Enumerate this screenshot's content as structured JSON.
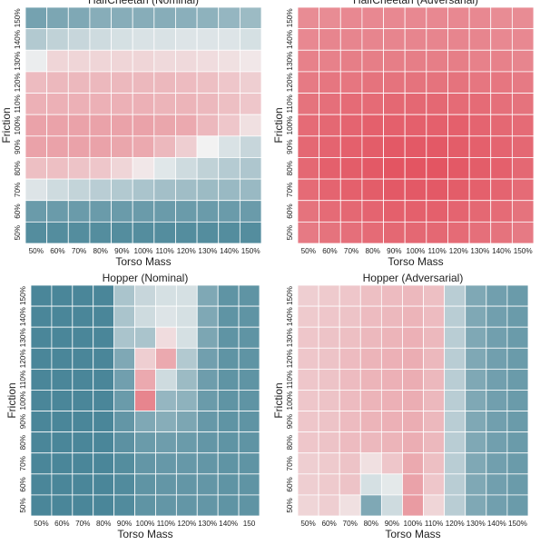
{
  "colors": {
    "low": "#3f7f93",
    "mid": "#f2f2f2",
    "high": "#e03c4b"
  },
  "chart_data": [
    {
      "type": "heatmap",
      "title": "HalfCheetah (Nominal)",
      "xlabel": "Torso Mass",
      "ylabel": "Friction",
      "x_ticks": [
        "50%",
        "60%",
        "70%",
        "80%",
        "90%",
        "100%",
        "110%",
        "120%",
        "130%",
        "140%",
        "150%"
      ],
      "y_ticks": [
        "150%",
        "140%",
        "130%",
        "120%",
        "110%",
        "100%",
        "90%",
        "80%",
        "70%",
        "60%",
        "50%"
      ],
      "values": [
        [
          0.15,
          0.17,
          0.18,
          0.2,
          0.2,
          0.2,
          0.2,
          0.21,
          0.22,
          0.24,
          0.26
        ],
        [
          0.32,
          0.36,
          0.38,
          0.4,
          0.42,
          0.43,
          0.43,
          0.44,
          0.44,
          0.44,
          0.42
        ],
        [
          0.48,
          0.58,
          0.58,
          0.58,
          0.58,
          0.58,
          0.57,
          0.57,
          0.56,
          0.55,
          0.53
        ],
        [
          0.65,
          0.66,
          0.66,
          0.66,
          0.66,
          0.66,
          0.66,
          0.65,
          0.64,
          0.62,
          0.6
        ],
        [
          0.68,
          0.68,
          0.68,
          0.68,
          0.68,
          0.68,
          0.67,
          0.67,
          0.66,
          0.64,
          0.62
        ],
        [
          0.72,
          0.72,
          0.72,
          0.72,
          0.72,
          0.72,
          0.71,
          0.7,
          0.66,
          0.62,
          0.55
        ],
        [
          0.72,
          0.72,
          0.72,
          0.72,
          0.71,
          0.7,
          0.66,
          0.6,
          0.5,
          0.43,
          0.38
        ],
        [
          0.64,
          0.64,
          0.63,
          0.62,
          0.58,
          0.53,
          0.45,
          0.4,
          0.36,
          0.33,
          0.31
        ],
        [
          0.44,
          0.4,
          0.37,
          0.34,
          0.32,
          0.3,
          0.28,
          0.27,
          0.26,
          0.25,
          0.25
        ],
        [
          0.12,
          0.12,
          0.12,
          0.12,
          0.12,
          0.12,
          0.12,
          0.12,
          0.12,
          0.12,
          0.12
        ],
        [
          0.06,
          0.06,
          0.06,
          0.06,
          0.06,
          0.06,
          0.06,
          0.06,
          0.06,
          0.06,
          0.06
        ]
      ]
    },
    {
      "type": "heatmap",
      "title": "HalfCheetah (Adversarial)",
      "xlabel": "Torso Mass",
      "ylabel": "Friction",
      "x_ticks": [
        "50%",
        "60%",
        "70%",
        "80%",
        "90%",
        "100%",
        "110%",
        "120%",
        "130%",
        "140%",
        "150%"
      ],
      "y_ticks": [
        "150%",
        "140%",
        "130%",
        "120%",
        "110%",
        "100%",
        "90%",
        "80%",
        "70%",
        "60%",
        "50%"
      ],
      "values": [
        [
          0.78,
          0.78,
          0.79,
          0.79,
          0.79,
          0.79,
          0.79,
          0.79,
          0.79,
          0.78,
          0.78
        ],
        [
          0.79,
          0.8,
          0.8,
          0.8,
          0.8,
          0.8,
          0.8,
          0.8,
          0.8,
          0.79,
          0.79
        ],
        [
          0.81,
          0.81,
          0.82,
          0.82,
          0.82,
          0.82,
          0.82,
          0.82,
          0.81,
          0.81,
          0.8
        ],
        [
          0.83,
          0.84,
          0.84,
          0.85,
          0.85,
          0.85,
          0.85,
          0.85,
          0.84,
          0.84,
          0.83
        ],
        [
          0.85,
          0.86,
          0.87,
          0.87,
          0.88,
          0.88,
          0.88,
          0.87,
          0.87,
          0.86,
          0.85
        ],
        [
          0.87,
          0.88,
          0.89,
          0.9,
          0.9,
          0.9,
          0.9,
          0.9,
          0.89,
          0.88,
          0.87
        ],
        [
          0.88,
          0.89,
          0.9,
          0.91,
          0.92,
          0.92,
          0.92,
          0.91,
          0.9,
          0.89,
          0.88
        ],
        [
          0.88,
          0.9,
          0.91,
          0.92,
          0.93,
          0.93,
          0.93,
          0.92,
          0.91,
          0.9,
          0.88
        ],
        [
          0.87,
          0.89,
          0.9,
          0.91,
          0.92,
          0.92,
          0.92,
          0.91,
          0.9,
          0.89,
          0.87
        ],
        [
          0.85,
          0.87,
          0.88,
          0.89,
          0.9,
          0.9,
          0.9,
          0.89,
          0.88,
          0.87,
          0.85
        ],
        [
          0.83,
          0.85,
          0.86,
          0.87,
          0.88,
          0.88,
          0.88,
          0.87,
          0.86,
          0.85,
          0.83
        ]
      ]
    },
    {
      "type": "heatmap",
      "title": "Hopper (Nominal)",
      "xlabel": "Torso Mass",
      "ylabel": "Friction",
      "x_ticks": [
        "50%",
        "60%",
        "70%",
        "80%",
        "90%",
        "100%",
        "110%",
        "120%",
        "130%",
        "140%",
        "150"
      ],
      "y_ticks": [
        "150%",
        "140%",
        "130%",
        "120%",
        "110%",
        "100%",
        "90%",
        "80%",
        "70%",
        "60%",
        "50%"
      ],
      "values": [
        [
          0.03,
          0.03,
          0.03,
          0.03,
          0.3,
          0.38,
          0.42,
          0.42,
          0.18,
          0.09,
          0.09
        ],
        [
          0.03,
          0.03,
          0.03,
          0.03,
          0.3,
          0.4,
          0.44,
          0.42,
          0.18,
          0.09,
          0.09
        ],
        [
          0.03,
          0.03,
          0.03,
          0.03,
          0.3,
          0.3,
          0.56,
          0.42,
          0.17,
          0.09,
          0.09
        ],
        [
          0.03,
          0.03,
          0.03,
          0.03,
          0.18,
          0.6,
          0.7,
          0.32,
          0.14,
          0.09,
          0.09
        ],
        [
          0.03,
          0.03,
          0.03,
          0.03,
          0.14,
          0.7,
          0.4,
          0.26,
          0.13,
          0.09,
          0.09
        ],
        [
          0.03,
          0.03,
          0.03,
          0.03,
          0.12,
          0.8,
          0.24,
          0.22,
          0.12,
          0.09,
          0.09
        ],
        [
          0.03,
          0.03,
          0.03,
          0.03,
          0.1,
          0.18,
          0.2,
          0.17,
          0.11,
          0.09,
          0.09
        ],
        [
          0.03,
          0.03,
          0.03,
          0.03,
          0.08,
          0.12,
          0.13,
          0.12,
          0.1,
          0.09,
          0.09
        ],
        [
          0.03,
          0.03,
          0.03,
          0.03,
          0.06,
          0.1,
          0.11,
          0.11,
          0.1,
          0.09,
          0.09
        ],
        [
          0.03,
          0.03,
          0.03,
          0.03,
          0.05,
          0.09,
          0.1,
          0.1,
          0.1,
          0.09,
          0.09
        ],
        [
          0.03,
          0.03,
          0.03,
          0.03,
          0.05,
          0.09,
          0.1,
          0.1,
          0.1,
          0.09,
          0.09
        ]
      ]
    },
    {
      "type": "heatmap",
      "title": "Hopper (Adversarial)",
      "xlabel": "Torso Mass",
      "ylabel": "Friction",
      "x_ticks": [
        "50%",
        "60%",
        "70%",
        "80%",
        "90%",
        "100%",
        "110%",
        "120%",
        "130%",
        "140%",
        "150%"
      ],
      "y_ticks": [
        "150%",
        "140%",
        "130%",
        "120%",
        "110%",
        "100%",
        "90%",
        "80%",
        "70%",
        "60%",
        "50%"
      ],
      "values": [
        [
          0.6,
          0.61,
          0.62,
          0.64,
          0.65,
          0.66,
          0.64,
          0.34,
          0.18,
          0.14,
          0.12
        ],
        [
          0.61,
          0.62,
          0.63,
          0.65,
          0.66,
          0.67,
          0.65,
          0.34,
          0.18,
          0.14,
          0.12
        ],
        [
          0.62,
          0.63,
          0.64,
          0.66,
          0.67,
          0.68,
          0.66,
          0.34,
          0.18,
          0.14,
          0.12
        ],
        [
          0.62,
          0.63,
          0.65,
          0.67,
          0.68,
          0.69,
          0.66,
          0.34,
          0.18,
          0.14,
          0.12
        ],
        [
          0.62,
          0.63,
          0.65,
          0.67,
          0.68,
          0.69,
          0.66,
          0.34,
          0.18,
          0.14,
          0.12
        ],
        [
          0.62,
          0.63,
          0.65,
          0.67,
          0.68,
          0.69,
          0.66,
          0.34,
          0.18,
          0.14,
          0.12
        ],
        [
          0.62,
          0.63,
          0.65,
          0.67,
          0.68,
          0.69,
          0.66,
          0.34,
          0.18,
          0.14,
          0.12
        ],
        [
          0.62,
          0.63,
          0.65,
          0.66,
          0.67,
          0.69,
          0.66,
          0.34,
          0.18,
          0.14,
          0.12
        ],
        [
          0.6,
          0.61,
          0.63,
          0.55,
          0.62,
          0.7,
          0.64,
          0.34,
          0.18,
          0.14,
          0.12
        ],
        [
          0.6,
          0.61,
          0.63,
          0.42,
          0.46,
          0.72,
          0.62,
          0.34,
          0.18,
          0.14,
          0.12
        ],
        [
          0.58,
          0.6,
          0.55,
          0.18,
          0.4,
          0.74,
          0.58,
          0.34,
          0.18,
          0.14,
          0.12
        ]
      ]
    }
  ]
}
